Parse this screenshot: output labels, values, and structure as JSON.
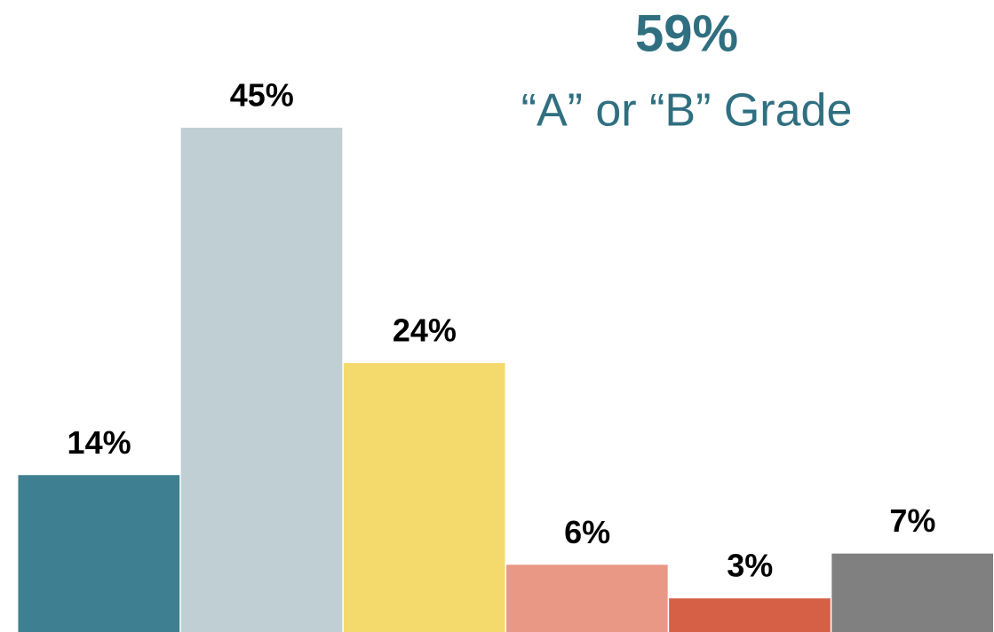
{
  "chart_data": {
    "type": "bar",
    "annotations": [
      "59%",
      "“A” or “B” Grade"
    ],
    "categories": [
      null,
      null,
      null,
      null,
      null,
      null
    ],
    "values": [
      14,
      45,
      24,
      6,
      3,
      7
    ],
    "value_labels": [
      "14%",
      "45%",
      "24%",
      "6%",
      "3%",
      "7%"
    ],
    "colors": [
      "#3e7f91",
      "#c0cfd4",
      "#f4da6c",
      "#ea9886",
      "#d66046",
      "#808080"
    ],
    "ylim": [
      0,
      56
    ]
  }
}
